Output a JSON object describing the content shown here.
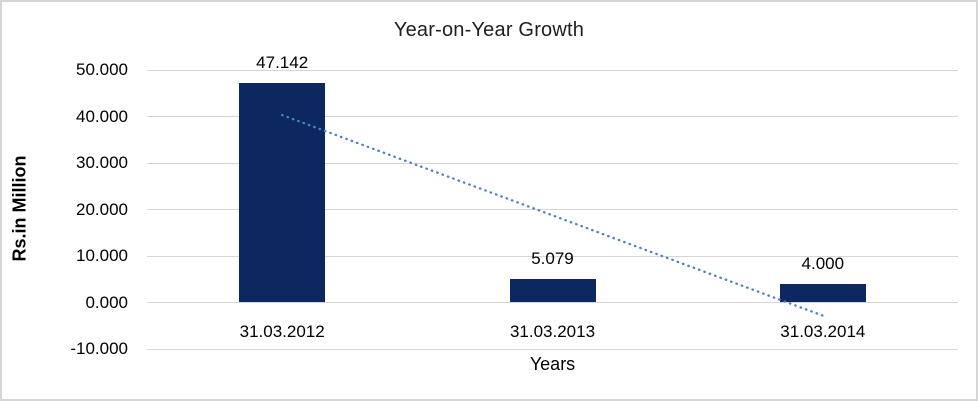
{
  "frame": {
    "border_color": "#d6d6d6",
    "background": "#ffffff"
  },
  "chart_data": {
    "type": "bar",
    "title": "Year-on-Year Growth",
    "ylabel": "Rs.in Million",
    "xlabel": "Years",
    "categories": [
      "31.03.2012",
      "31.03.2013",
      "31.03.2014"
    ],
    "values": [
      47.142,
      5.079,
      4.0
    ],
    "data_labels": [
      "47.142",
      "5.079",
      "4.000"
    ],
    "ylim": [
      -10,
      50
    ],
    "ytick_values": [
      50,
      40,
      30,
      20,
      10,
      0,
      -10
    ],
    "ytick_labels": [
      "50.000",
      "40.000",
      "30.000",
      "20.000",
      "10.000",
      "0.000",
      "-10.000"
    ],
    "grid": true,
    "legend": false,
    "bar_color": "#0d2760",
    "gridline_color": "#d6d6d6",
    "trendline": {
      "type": "linear",
      "style": "dotted",
      "color": "#4f81bd",
      "start_value": 40.31,
      "end_value": -2.83
    }
  }
}
